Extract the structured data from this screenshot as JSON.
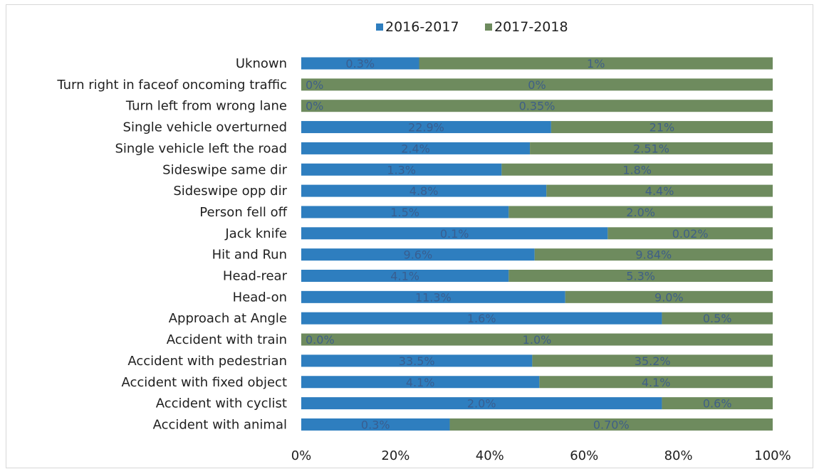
{
  "chart_data": {
    "type": "bar",
    "orientation": "horizontal",
    "stacked": "percent",
    "categories": [
      "Uknown",
      "Turn right in faceof oncoming traffic",
      "Turn left from wrong lane",
      "Single vehicle overturned",
      "Single vehicle left the road",
      "Sideswipe same dir",
      "Sideswipe opp dir",
      "Person fell off",
      "Jack knife",
      "Hit and Run",
      "Head-rear",
      "Head-on",
      "Approach at Angle",
      "Accident with train",
      "Accident with pedestrian",
      "Accident with fixed object",
      "Accident with cyclist",
      "Accident with animal"
    ],
    "series": [
      {
        "name": "2016-2017",
        "color": "#2e7ebf",
        "share_percent": [
          25,
          0,
          0,
          53,
          48.5,
          42.5,
          52,
          44,
          65,
          49.5,
          44,
          56,
          76.5,
          0,
          49,
          50.5,
          76.5,
          31.5
        ],
        "labels": [
          "0.3%",
          "0%",
          "0%",
          "22.9%",
          "2.4%",
          "1.3%",
          "4.8%",
          "1.5%",
          "0.1%",
          "9.6%",
          "4.1%",
          "11.3%",
          "1.6%",
          "0.0%",
          "33.5%",
          "4.1%",
          "2.0%",
          "0.3%"
        ]
      },
      {
        "name": "2017-2018",
        "color": "#6e8b5e",
        "share_percent": [
          75,
          100,
          100,
          47,
          51.5,
          57.5,
          48,
          56,
          35,
          50.5,
          56,
          44,
          23.5,
          100,
          51,
          49.5,
          23.5,
          68.5
        ],
        "labels": [
          "1%",
          "0%",
          "0.35%",
          "21%",
          "2.51%",
          "1.8%",
          "4.4%",
          "2.0%",
          "0.02%",
          "9.84%",
          "5.3%",
          "9.0%",
          "0.5%",
          "1.0%",
          "35.2%",
          "4.1%",
          "0.6%",
          "0.70%"
        ]
      }
    ],
    "x_ticks": [
      "0%",
      "20%",
      "40%",
      "60%",
      "80%",
      "100%"
    ],
    "xlim": [
      0,
      100
    ],
    "legend_position": "top",
    "grid": false
  }
}
